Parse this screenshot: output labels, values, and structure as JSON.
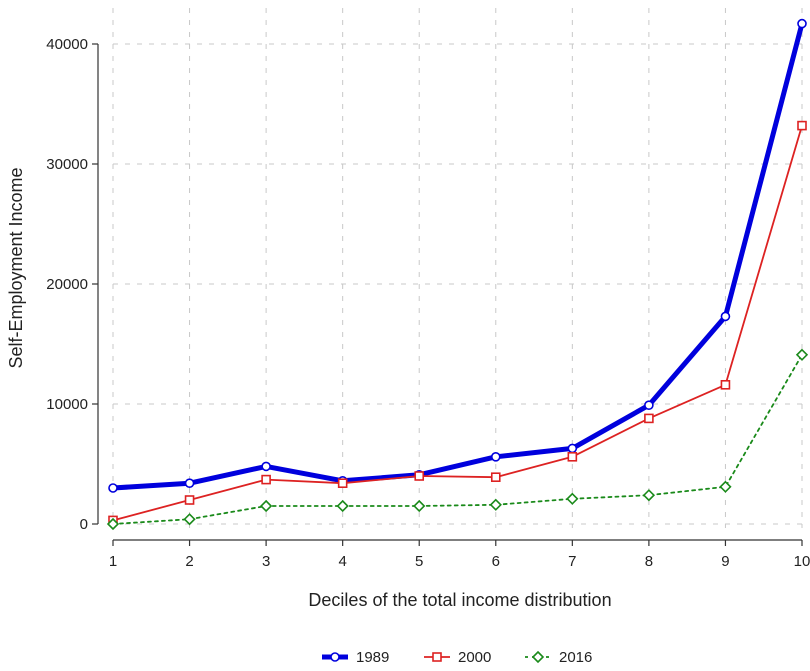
{
  "chart_data": {
    "type": "line",
    "title": "",
    "xlabel": "Deciles of the total income distribution",
    "ylabel": "Self-Employment Income",
    "x": [
      1,
      2,
      3,
      4,
      5,
      6,
      7,
      8,
      9,
      10
    ],
    "x_tick_labels": [
      "1",
      "2",
      "3",
      "4",
      "5",
      "6",
      "7",
      "8",
      "9",
      "10"
    ],
    "xlim": [
      1,
      10
    ],
    "ylim": [
      0,
      42000
    ],
    "y_ticks": [
      0,
      10000,
      20000,
      30000,
      40000
    ],
    "y_tick_labels": [
      "0",
      "10000",
      "20000",
      "30000",
      "40000"
    ],
    "grid": true,
    "legend_position": "bottom",
    "series": [
      {
        "name": "1989",
        "color": "#0000dd",
        "marker": "circle",
        "line_style": "solid-thick",
        "values": [
          3000,
          3400,
          4800,
          3600,
          4100,
          5600,
          6300,
          9900,
          17300,
          41700
        ]
      },
      {
        "name": "2000",
        "color": "#dd2222",
        "marker": "square",
        "line_style": "solid",
        "values": [
          300,
          2000,
          3700,
          3400,
          4000,
          3900,
          5600,
          8800,
          11600,
          33200
        ]
      },
      {
        "name": "2016",
        "color": "#1a8a1a",
        "marker": "diamond",
        "line_style": "dotted",
        "values": [
          0,
          400,
          1500,
          1500,
          1500,
          1600,
          2100,
          2400,
          3100,
          14100
        ]
      }
    ]
  }
}
